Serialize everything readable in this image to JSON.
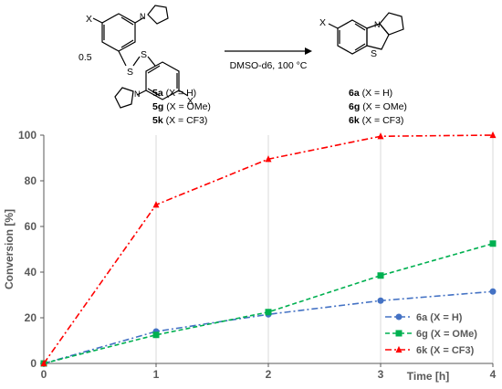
{
  "scheme": {
    "substituent": "X",
    "coefficient": "0.5",
    "triazole_atom": "N",
    "sulfur_atom": "S",
    "conditions": "DMSO-d6, 100 °C",
    "reactants": [
      {
        "label": "5a",
        "detail": "(X = H)"
      },
      {
        "label": "5g",
        "detail": "(X = OMe)"
      },
      {
        "label": "5k",
        "detail": "(X = CF3)"
      }
    ],
    "products": [
      {
        "label": "6a",
        "detail": "(X = H)"
      },
      {
        "label": "6g",
        "detail": "(X = OMe)"
      },
      {
        "label": "6k",
        "detail": "(X = CF3)"
      }
    ]
  },
  "chart_data": {
    "type": "line",
    "x": [
      0,
      1,
      2,
      3,
      4
    ],
    "xlabel": "Time [h]",
    "ylabel": "Conversion [%]",
    "xlim": [
      0,
      4
    ],
    "ylim": [
      0,
      100
    ],
    "xticks": [
      "0",
      "1",
      "2",
      "3",
      "4"
    ],
    "yticks": [
      "0",
      "20",
      "40",
      "60",
      "80",
      "100"
    ],
    "grid": "x-vertical",
    "legend_position": "bottom-right",
    "series": [
      {
        "name": "6a (X = H)",
        "values": [
          0,
          14,
          21.5,
          27.5,
          31.5
        ],
        "color": "#4472C4",
        "marker": "circle",
        "dash": "dashdot"
      },
      {
        "name": "6g (X = OMe)",
        "values": [
          0,
          12.5,
          22.5,
          38.5,
          52.5
        ],
        "color": "#00B050",
        "marker": "square",
        "dash": "dashed"
      },
      {
        "name": "6k (X = CF3)",
        "values": [
          0,
          69.5,
          89.5,
          99.5,
          100
        ],
        "color": "#FF0000",
        "marker": "triangle",
        "dash": "dashdot"
      }
    ]
  }
}
